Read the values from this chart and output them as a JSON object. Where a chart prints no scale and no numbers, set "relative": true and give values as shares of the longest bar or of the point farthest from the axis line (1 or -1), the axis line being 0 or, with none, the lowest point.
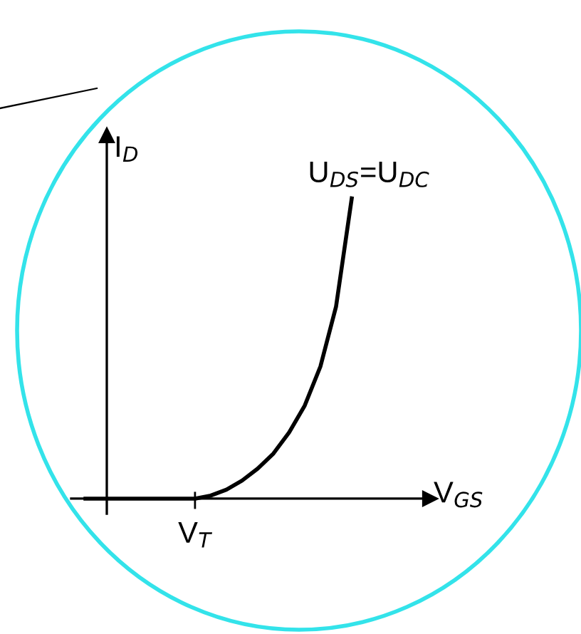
{
  "chart_data": {
    "type": "line",
    "relative": true,
    "xlabel": "V$_{GS}$",
    "ylabel": "I$_{D}$",
    "categories": [
      null,
      null,
      null,
      null,
      null,
      null,
      null,
      null,
      null,
      null,
      null,
      null,
      null,
      null,
      null,
      null,
      null,
      null
    ],
    "values": [
      0,
      0,
      0,
      0,
      0,
      0,
      0,
      0,
      0.01,
      0.03,
      0.06,
      0.1,
      0.15,
      0.22,
      0.31,
      0.44,
      0.64,
      1
    ],
    "color": "#000000",
    "annotations": [
      "U$_{DS}$=U$_{DC}$",
      "V$_{T}$"
    ]
  }
}
